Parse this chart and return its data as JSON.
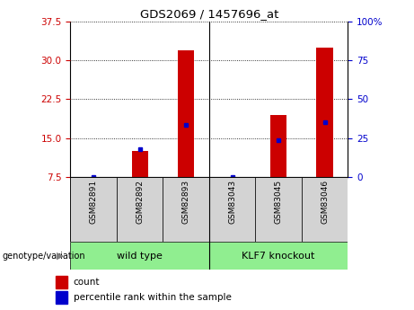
{
  "title": "GDS2069 / 1457696_at",
  "samples": [
    "GSM82891",
    "GSM82892",
    "GSM82893",
    "GSM83043",
    "GSM83045",
    "GSM83046"
  ],
  "red_values": [
    7.5,
    12.5,
    32.0,
    7.5,
    19.5,
    32.5
  ],
  "blue_values": [
    7.5,
    12.8,
    17.5,
    7.5,
    14.5,
    18.0
  ],
  "ylim_left": [
    7.5,
    37.5
  ],
  "ylim_right": [
    0,
    100
  ],
  "yticks_left": [
    7.5,
    15.0,
    22.5,
    30.0,
    37.5
  ],
  "yticks_right": [
    0,
    25,
    50,
    75,
    100
  ],
  "left_tick_color": "#cc0000",
  "right_tick_color": "#0000cc",
  "bar_color": "#cc0000",
  "blue_marker_color": "#0000cc",
  "bar_width": 0.35,
  "legend_count_label": "count",
  "legend_percentile_label": "percentile rank within the sample",
  "wt_label": "wild type",
  "ko_label": "KLF7 knockout",
  "group_prefix": "genotype/variation",
  "cell_bg": "#d3d3d3",
  "group_bg": "#90EE90"
}
